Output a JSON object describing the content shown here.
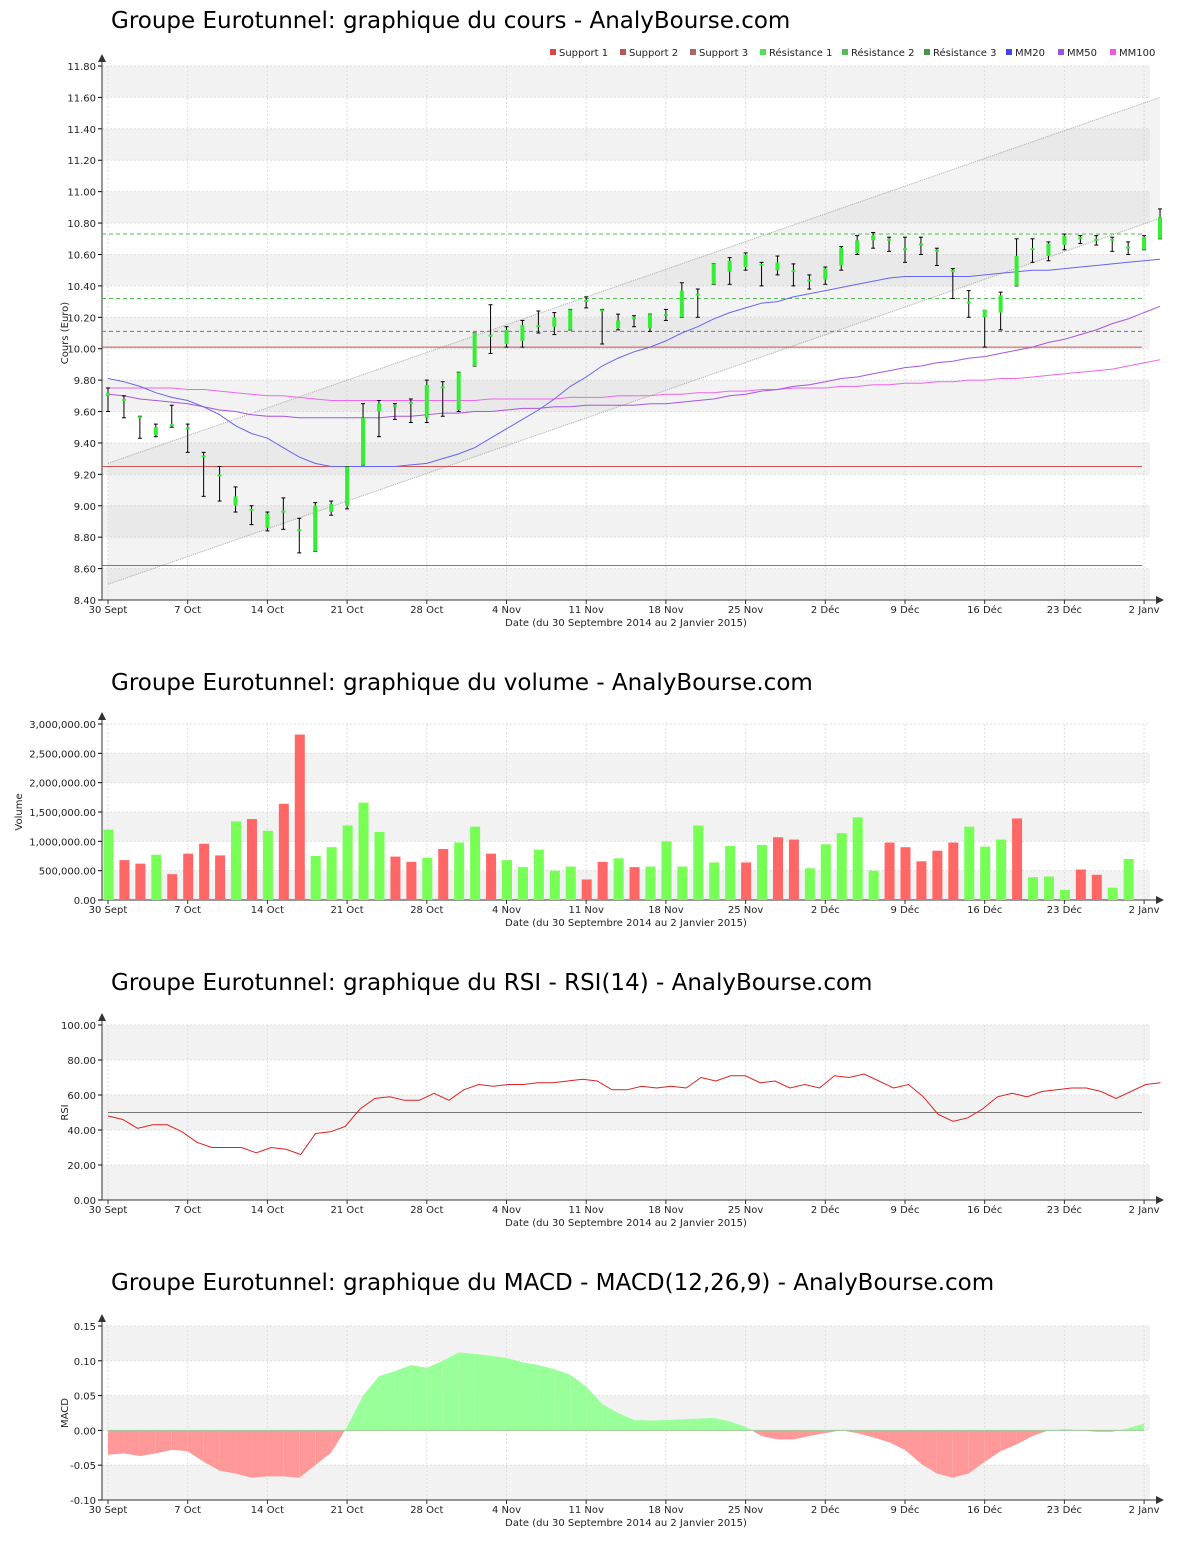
{
  "colors": {
    "up": "#33ee33",
    "down": "#dd1111",
    "vol_up": "#77ff55",
    "vol_down": "#ff6666",
    "band": "#f2f2f2",
    "grid": "#dddddd",
    "mm20": "#6666ee",
    "mm50": "#aa55dd",
    "mm100": "#ee66ee",
    "support": "#cc5555",
    "resist": "#55bb55",
    "rsi": "#dd2222",
    "macd_pos": "#99ff99",
    "macd_neg": "#ff9999"
  },
  "x_axis": {
    "label": "Date (du 30 Septembre 2014 au 2 Janvier 2015)",
    "ticks": [
      "30 Sept",
      "7 Oct",
      "14 Oct",
      "21 Oct",
      "28 Oct",
      "4 Nov",
      "11 Nov",
      "18 Nov",
      "25 Nov",
      "2 Déc",
      "9 Déc",
      "16 Déc",
      "23 Déc",
      "2 Janv"
    ],
    "tick_index": [
      0,
      5,
      10,
      15,
      20,
      25,
      30,
      35,
      40,
      45,
      50,
      55,
      60,
      65
    ]
  },
  "chart_data": [
    {
      "id": "price",
      "type": "candlestick",
      "title": "Groupe Eurotunnel: graphique du cours - AnalyBourse.com",
      "ylabel": "Cours (Euro)",
      "ylim": [
        8.4,
        11.8
      ],
      "yticks": [
        "8.40",
        "8.60",
        "8.80",
        "9.00",
        "9.20",
        "9.40",
        "9.60",
        "9.80",
        "10.00",
        "10.20",
        "10.40",
        "10.60",
        "10.80",
        "11.00",
        "11.20",
        "11.40",
        "11.60",
        "11.80"
      ],
      "legend": [
        "Support 1",
        "Support 2",
        "Support 3",
        "Résistance 1",
        "Résistance 2",
        "Résistance 3",
        "MM20",
        "MM50",
        "MM100"
      ],
      "legend_colors": [
        "#dd4444",
        "#bb5555",
        "#aa6666",
        "#55dd55",
        "#55bb55",
        "#449944",
        "#4444ee",
        "#9955dd",
        "#ee55ee"
      ],
      "supports": [
        10.01,
        9.25,
        8.62
      ],
      "resistances": [
        10.73,
        10.32,
        10.11
      ],
      "candles": [
        [
          9.7,
          9.72,
          9.6,
          9.66,
          9.75
        ],
        [
          9.68,
          9.68,
          9.56,
          9.57,
          9.7
        ],
        [
          9.57,
          9.57,
          9.43,
          9.44,
          9.57
        ],
        [
          9.45,
          9.5,
          9.44,
          9.49,
          9.52
        ],
        [
          9.52,
          9.52,
          9.5,
          9.51,
          9.64
        ],
        [
          9.5,
          9.5,
          9.34,
          9.34,
          9.52
        ],
        [
          9.32,
          9.32,
          9.06,
          9.1,
          9.34
        ],
        [
          9.2,
          9.2,
          9.03,
          9.03,
          9.25
        ],
        [
          9.0,
          9.06,
          8.96,
          9.05,
          9.12
        ],
        [
          8.98,
          8.98,
          8.88,
          8.88,
          9.0
        ],
        [
          8.86,
          8.95,
          8.84,
          8.93,
          8.96
        ],
        [
          8.97,
          8.97,
          8.85,
          8.85,
          9.05
        ],
        [
          8.85,
          8.85,
          8.7,
          8.7,
          8.92
        ],
        [
          8.71,
          9.0,
          8.71,
          8.99,
          9.02
        ],
        [
          8.96,
          9.01,
          8.94,
          9.01,
          9.03
        ],
        [
          9.0,
          9.25,
          8.98,
          9.25,
          9.25
        ],
        [
          9.26,
          9.56,
          9.26,
          9.56,
          9.65
        ],
        [
          9.6,
          9.65,
          9.44,
          9.61,
          9.67
        ],
        [
          9.64,
          9.64,
          9.55,
          9.58,
          9.65
        ],
        [
          9.66,
          9.66,
          9.53,
          9.52,
          9.68
        ],
        [
          9.56,
          9.77,
          9.53,
          9.77,
          9.8
        ],
        [
          9.76,
          9.76,
          9.57,
          9.57,
          9.79
        ],
        [
          9.61,
          9.85,
          9.6,
          9.85,
          9.85
        ],
        [
          9.89,
          10.1,
          9.89,
          10.1,
          10.1
        ],
        [
          10.09,
          10.09,
          9.97,
          10.0,
          10.28
        ],
        [
          10.03,
          10.12,
          10.01,
          10.07,
          10.14
        ],
        [
          10.05,
          10.15,
          10.01,
          10.15,
          10.18
        ],
        [
          10.15,
          10.15,
          10.1,
          10.12,
          10.24
        ],
        [
          10.14,
          10.2,
          10.09,
          10.2,
          10.23
        ],
        [
          10.12,
          10.25,
          10.12,
          10.24,
          10.25
        ],
        [
          10.31,
          10.31,
          10.26,
          10.27,
          10.33
        ],
        [
          10.25,
          10.25,
          10.03,
          10.1,
          10.25
        ],
        [
          10.13,
          10.18,
          10.12,
          10.18,
          10.22
        ],
        [
          10.2,
          10.2,
          10.14,
          10.14,
          10.21
        ],
        [
          10.13,
          10.22,
          10.11,
          10.22,
          10.22
        ],
        [
          10.22,
          10.22,
          10.18,
          10.18,
          10.25
        ],
        [
          10.2,
          10.37,
          10.2,
          10.37,
          10.42
        ],
        [
          10.35,
          10.35,
          10.2,
          10.32,
          10.38
        ],
        [
          10.41,
          10.54,
          10.41,
          10.48,
          10.54
        ],
        [
          10.49,
          10.56,
          10.41,
          10.56,
          10.58
        ],
        [
          10.52,
          10.6,
          10.5,
          10.6,
          10.61
        ],
        [
          10.54,
          10.54,
          10.4,
          10.46,
          10.55
        ],
        [
          10.5,
          10.55,
          10.47,
          10.55,
          10.59
        ],
        [
          10.5,
          10.5,
          10.4,
          10.4,
          10.54
        ],
        [
          10.44,
          10.44,
          10.38,
          10.39,
          10.47
        ],
        [
          10.44,
          10.51,
          10.41,
          10.5,
          10.52
        ],
        [
          10.53,
          10.64,
          10.5,
          10.64,
          10.65
        ],
        [
          10.61,
          10.69,
          10.6,
          10.69,
          10.72
        ],
        [
          10.69,
          10.72,
          10.64,
          10.72,
          10.74
        ],
        [
          10.7,
          10.7,
          10.62,
          10.62,
          10.71
        ],
        [
          10.64,
          10.64,
          10.55,
          10.55,
          10.71
        ],
        [
          10.67,
          10.67,
          10.6,
          10.6,
          10.71
        ],
        [
          10.63,
          10.63,
          10.53,
          10.53,
          10.64
        ],
        [
          10.5,
          10.5,
          10.32,
          10.33,
          10.51
        ],
        [
          10.3,
          10.3,
          10.2,
          10.2,
          10.37
        ],
        [
          10.2,
          10.25,
          10.01,
          10.24,
          10.24
        ],
        [
          10.23,
          10.34,
          10.12,
          10.34,
          10.36
        ],
        [
          10.4,
          10.59,
          10.4,
          10.59,
          10.7
        ],
        [
          10.64,
          10.64,
          10.55,
          10.55,
          10.7
        ],
        [
          10.59,
          10.67,
          10.56,
          10.67,
          10.68
        ],
        [
          10.66,
          10.72,
          10.63,
          10.72,
          10.73
        ],
        [
          10.7,
          10.71,
          10.67,
          10.71,
          10.72
        ],
        [
          10.7,
          10.7,
          10.66,
          10.68,
          10.72
        ],
        [
          10.7,
          10.7,
          10.62,
          10.65,
          10.71
        ],
        [
          10.65,
          10.65,
          10.6,
          10.61,
          10.68
        ],
        [
          10.63,
          10.71,
          10.63,
          10.71,
          10.72
        ],
        [
          10.7,
          10.84,
          10.7,
          10.84,
          10.89
        ]
      ],
      "trend_channel": {
        "upper": [
          [
            0,
            9.27
          ],
          [
            66,
            11.6
          ]
        ],
        "lower": [
          [
            0,
            8.5
          ],
          [
            66,
            10.83
          ]
        ]
      },
      "mm20": [
        9.81,
        9.79,
        9.76,
        9.72,
        9.69,
        9.67,
        9.63,
        9.58,
        9.51,
        9.46,
        9.43,
        9.37,
        9.31,
        9.27,
        9.25,
        9.25,
        9.25,
        9.25,
        9.25,
        9.26,
        9.27,
        9.3,
        9.33,
        9.37,
        9.43,
        9.49,
        9.55,
        9.61,
        9.68,
        9.76,
        9.82,
        9.89,
        9.94,
        9.98,
        10.01,
        10.05,
        10.1,
        10.14,
        10.19,
        10.23,
        10.26,
        10.29,
        10.3,
        10.33,
        10.35,
        10.37,
        10.39,
        10.41,
        10.43,
        10.45,
        10.46,
        10.46,
        10.46,
        10.46,
        10.46,
        10.47,
        10.48,
        10.49,
        10.5,
        10.5,
        10.51,
        10.52,
        10.53,
        10.54,
        10.55,
        10.56,
        10.57
      ],
      "mm50": [
        9.71,
        9.7,
        9.68,
        9.67,
        9.66,
        9.65,
        9.63,
        9.61,
        9.6,
        9.58,
        9.57,
        9.57,
        9.56,
        9.56,
        9.56,
        9.56,
        9.56,
        9.56,
        9.57,
        9.57,
        9.58,
        9.59,
        9.59,
        9.6,
        9.6,
        9.61,
        9.62,
        9.62,
        9.63,
        9.63,
        9.64,
        9.64,
        9.64,
        9.64,
        9.65,
        9.65,
        9.66,
        9.67,
        9.68,
        9.7,
        9.71,
        9.73,
        9.74,
        9.76,
        9.77,
        9.79,
        9.81,
        9.82,
        9.84,
        9.86,
        9.88,
        9.89,
        9.91,
        9.92,
        9.94,
        9.95,
        9.97,
        9.99,
        10.01,
        10.04,
        10.06,
        10.09,
        10.12,
        10.16,
        10.19,
        10.23,
        10.27
      ],
      "mm100": [
        9.75,
        9.75,
        9.75,
        9.75,
        9.75,
        9.74,
        9.74,
        9.73,
        9.72,
        9.71,
        9.7,
        9.7,
        9.69,
        9.68,
        9.67,
        9.67,
        9.67,
        9.67,
        9.67,
        9.67,
        9.67,
        9.67,
        9.67,
        9.67,
        9.68,
        9.68,
        9.68,
        9.68,
        9.68,
        9.69,
        9.69,
        9.69,
        9.7,
        9.7,
        9.7,
        9.71,
        9.71,
        9.72,
        9.72,
        9.73,
        9.73,
        9.74,
        9.74,
        9.75,
        9.75,
        9.75,
        9.76,
        9.76,
        9.77,
        9.77,
        9.78,
        9.78,
        9.79,
        9.79,
        9.8,
        9.8,
        9.81,
        9.81,
        9.82,
        9.83,
        9.84,
        9.85,
        9.86,
        9.87,
        9.89,
        9.91,
        9.93
      ]
    },
    {
      "id": "volume",
      "type": "bar",
      "title": "Groupe Eurotunnel: graphique du volume - AnalyBourse.com",
      "ylabel": "Volume",
      "ylim": [
        0,
        3000000
      ],
      "yticks": [
        "0.00",
        "500,000.00",
        "1,000,000.00",
        "1,500,000.00",
        "2,000,000.00",
        "2,500,000.00",
        "3,000,000.00"
      ],
      "values": [
        1200000,
        680000,
        620000,
        770000,
        440000,
        790000,
        960000,
        760000,
        1340000,
        1380000,
        1180000,
        1640000,
        2820000,
        750000,
        900000,
        1270000,
        1660000,
        1160000,
        740000,
        650000,
        720000,
        870000,
        980000,
        1250000,
        790000,
        680000,
        560000,
        860000,
        500000,
        570000,
        350000,
        650000,
        710000,
        560000,
        570000,
        1000000,
        570000,
        1270000,
        640000,
        920000,
        640000,
        940000,
        1070000,
        1030000,
        540000,
        950000,
        1140000,
        1410000,
        500000,
        980000,
        900000,
        660000,
        840000,
        980000,
        1250000,
        910000,
        1030000,
        1390000,
        390000,
        400000,
        170000,
        520000,
        430000,
        210000,
        700000
      ],
      "up": [
        1,
        0,
        0,
        1,
        0,
        0,
        0,
        0,
        1,
        0,
        1,
        0,
        0,
        1,
        1,
        1,
        1,
        1,
        0,
        0,
        1,
        0,
        1,
        1,
        0,
        1,
        1,
        1,
        1,
        1,
        0,
        0,
        1,
        0,
        1,
        1,
        1,
        1,
        1,
        1,
        0,
        1,
        0,
        0,
        1,
        1,
        1,
        1,
        1,
        0,
        0,
        0,
        0,
        0,
        1,
        1,
        1,
        0,
        1,
        1,
        1,
        0,
        0,
        1,
        1
      ]
    },
    {
      "id": "rsi",
      "type": "line",
      "title": "Groupe Eurotunnel: graphique du RSI - RSI(14) - AnalyBourse.com",
      "ylabel": "RSI",
      "ylim": [
        0,
        100
      ],
      "yticks": [
        "0.00",
        "20.00",
        "40.00",
        "60.00",
        "80.00",
        "100.00"
      ],
      "reference": 50,
      "values": [
        48,
        46,
        41,
        43,
        43,
        39,
        33,
        30,
        30,
        30,
        27,
        30,
        29,
        26,
        38,
        39,
        42,
        52,
        58,
        59,
        57,
        57,
        61,
        57,
        63,
        66,
        65,
        66,
        66,
        67,
        67,
        68,
        69,
        68,
        63,
        63,
        65,
        64,
        65,
        64,
        70,
        68,
        71,
        71,
        67,
        68,
        64,
        66,
        64,
        71,
        70,
        72,
        68,
        64,
        66,
        59,
        49,
        45,
        47,
        52,
        59,
        61,
        59,
        62,
        63,
        64,
        64,
        62,
        58,
        62,
        66,
        67
      ],
      "values_x_step": 0.93
    },
    {
      "id": "macd",
      "type": "area",
      "title": "Groupe Eurotunnel: graphique du MACD - MACD(12,26,9) - AnalyBourse.com",
      "ylabel": "MACD",
      "ylim": [
        -0.1,
        0.15
      ],
      "yticks": [
        "-0.10",
        "-0.05",
        "0.00",
        "0.05",
        "0.10",
        "0.15"
      ],
      "values": [
        -0.035,
        -0.033,
        -0.037,
        -0.033,
        -0.028,
        -0.03,
        -0.045,
        -0.058,
        -0.062,
        -0.068,
        -0.066,
        -0.066,
        -0.068,
        -0.05,
        -0.032,
        0.005,
        0.05,
        0.078,
        0.085,
        0.094,
        0.09,
        0.1,
        0.112,
        0.11,
        0.107,
        0.104,
        0.098,
        0.094,
        0.088,
        0.08,
        0.063,
        0.038,
        0.025,
        0.015,
        0.014,
        0.015,
        0.016,
        0.017,
        0.018,
        0.013,
        0.005,
        -0.008,
        -0.013,
        -0.013,
        -0.008,
        -0.004,
        0.0,
        -0.004,
        -0.01,
        -0.017,
        -0.028,
        -0.048,
        -0.062,
        -0.068,
        -0.062,
        -0.045,
        -0.03,
        -0.02,
        -0.008,
        0.0,
        0.002,
        0.0,
        -0.002,
        -0.002,
        0.003,
        0.01
      ]
    }
  ]
}
